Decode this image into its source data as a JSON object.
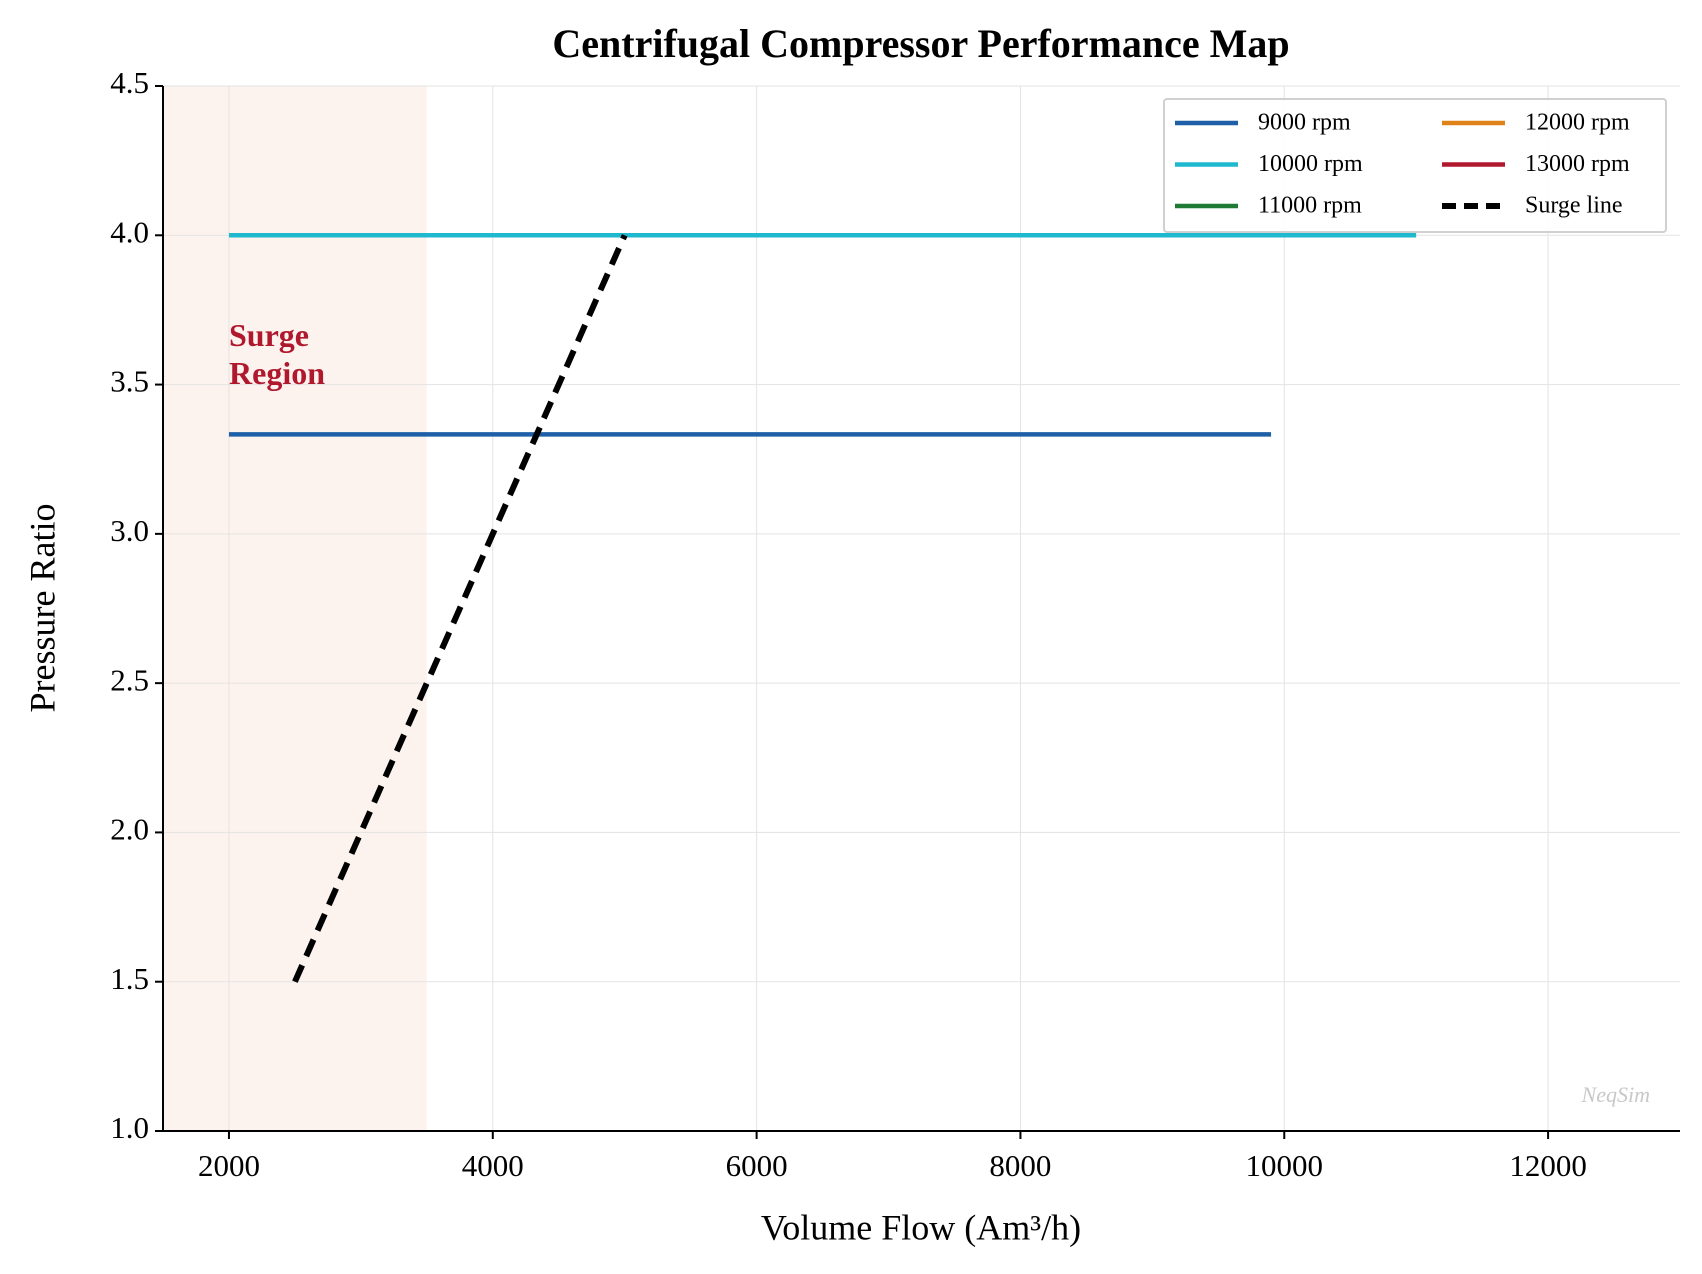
{
  "chart_data": {
    "type": "line",
    "title": "Centrifugal Compressor Performance Map",
    "x_label": "Volume Flow (Am³/h)",
    "y_label": "Pressure Ratio",
    "xlim": [
      1500,
      13000
    ],
    "ylim": [
      1.0,
      4.5
    ],
    "xticks": [
      2000,
      4000,
      6000,
      8000,
      10000,
      12000
    ],
    "yticks": [
      {
        "value": 1.0,
        "label": "1.0"
      },
      1.5,
      {
        "value": 2.0,
        "label": "2.0"
      },
      2.5,
      {
        "value": 3.0,
        "label": "3.0"
      },
      3.5,
      {
        "value": 4.0,
        "label": "4.0"
      },
      4.5
    ],
    "grid": true,
    "legend": "upper right",
    "series": [
      {
        "name": "9000 rpm",
        "color": "#1f5fa8",
        "x": [
          2000,
          9900
        ],
        "values": [
          3.333,
          3.333
        ]
      },
      {
        "name": "10000 rpm",
        "color": "#1fb9cf",
        "x": [
          2000,
          11000
        ],
        "values": [
          4.0,
          4.0
        ]
      },
      {
        "name": "11000 rpm",
        "color": "#1e7a34",
        "x": [],
        "values": []
      },
      {
        "name": "12000 rpm",
        "color": "#e0821a",
        "x": [],
        "values": []
      },
      {
        "name": "13000 rpm",
        "color": "#b0182e",
        "x": [],
        "values": []
      },
      {
        "name": "Surge line",
        "color": "#000000",
        "dashed": true,
        "x": [
          2500,
          5000
        ],
        "values": [
          1.5,
          4.0
        ]
      }
    ],
    "surge_region": {
      "x": [
        1500,
        3500
      ],
      "color": "#fdf3ee",
      "label": "Surge\nRegion",
      "label_color": "#b0182e"
    },
    "watermark": "NeqSim"
  }
}
